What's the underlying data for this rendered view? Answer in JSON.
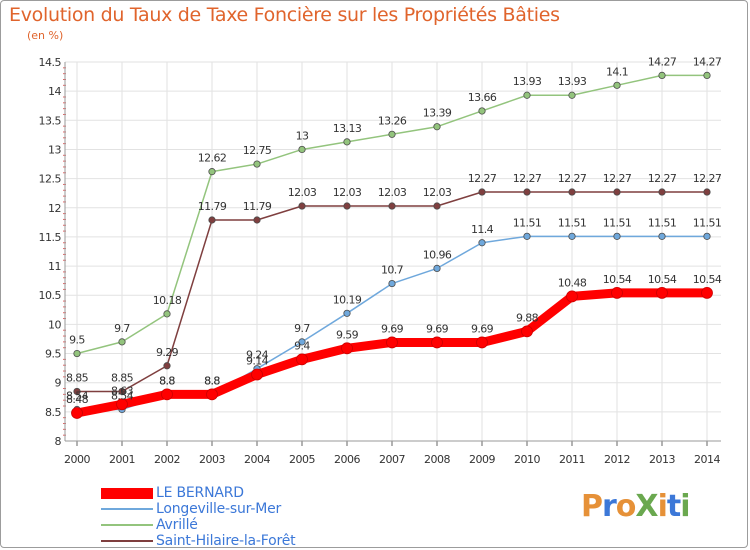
{
  "title": "Evolution du Taux de Taxe Foncière sur les Propriétés Bâties",
  "unit_label": "(en %)",
  "chart_data": {
    "type": "line",
    "title": "Evolution du Taux de Taxe Foncière sur les Propriétés Bâties",
    "ylabel": "(en %)",
    "xlabel": "",
    "x": [
      2000,
      2001,
      2002,
      2003,
      2004,
      2005,
      2006,
      2007,
      2008,
      2009,
      2010,
      2011,
      2012,
      2013,
      2014
    ],
    "ylim": [
      8,
      14.5
    ],
    "yticks": [
      "8",
      "8.5",
      "9",
      "9.5",
      "10",
      "10.5",
      "11",
      "11.5",
      "12",
      "12.5",
      "13",
      "13.5",
      "14",
      "14.5"
    ],
    "grid": true,
    "legend_position": "bottom",
    "series": [
      {
        "name": "LE BERNARD",
        "color": "#ff0000",
        "thick": true,
        "values": [
          8.48,
          8.63,
          8.8,
          8.8,
          9.14,
          9.4,
          9.59,
          9.69,
          9.69,
          9.69,
          9.88,
          10.48,
          10.54,
          10.54,
          10.54
        ],
        "labels": [
          "8.48",
          "8.63",
          "8.8",
          "8.8",
          "9.14",
          "9.4",
          "9.59",
          "9.69",
          "9.69",
          "9.69",
          "9.88",
          "10.48",
          "10.54",
          "10.54",
          "10.54"
        ]
      },
      {
        "name": "Longeville-sur-Mer",
        "color": "#6fa8dc",
        "thick": false,
        "values": [
          8.54,
          8.54,
          8.8,
          8.8,
          9.24,
          9.7,
          10.19,
          10.7,
          10.96,
          11.4,
          11.51,
          11.51,
          11.51,
          11.51,
          11.51
        ],
        "labels": [
          "8.54",
          "8.54",
          "8.8",
          "8.8",
          "9.24",
          "9.7",
          "10.19",
          "10.7",
          "10.96",
          "11.4",
          "11.51",
          "11.51",
          "11.51",
          "11.51",
          "11.51"
        ]
      },
      {
        "name": "Avrillé",
        "color": "#93c47d",
        "thick": false,
        "values": [
          9.5,
          9.7,
          10.18,
          12.62,
          12.75,
          13,
          13.13,
          13.26,
          13.39,
          13.66,
          13.93,
          13.93,
          14.1,
          14.27,
          14.27
        ],
        "labels": [
          "9.5",
          "9.7",
          "10.18",
          "12.62",
          "12.75",
          "13",
          "13.13",
          "13.26",
          "13.39",
          "13.66",
          "13.93",
          "13.93",
          "14.1",
          "14.27",
          "14.27"
        ]
      },
      {
        "name": "Saint-Hilaire-la-Forêt",
        "color": "#7f3f3f",
        "thick": false,
        "values": [
          8.85,
          8.85,
          9.29,
          11.79,
          11.79,
          12.03,
          12.03,
          12.03,
          12.03,
          12.27,
          12.27,
          12.27,
          12.27,
          12.27,
          12.27
        ],
        "labels": [
          "8.85",
          "8.85",
          "9.29",
          "11.79",
          "11.79",
          "12.03",
          "12.03",
          "12.03",
          "12.03",
          "12.27",
          "12.27",
          "12.27",
          "12.27",
          "12.27",
          "12.27"
        ]
      }
    ]
  },
  "logo": {
    "text": "ProXiti",
    "colors": [
      "#e69138",
      "#3c78d8",
      "#e69138",
      "#6aa84f",
      "#e69138",
      "#3c78d8",
      "#6aa84f"
    ]
  }
}
